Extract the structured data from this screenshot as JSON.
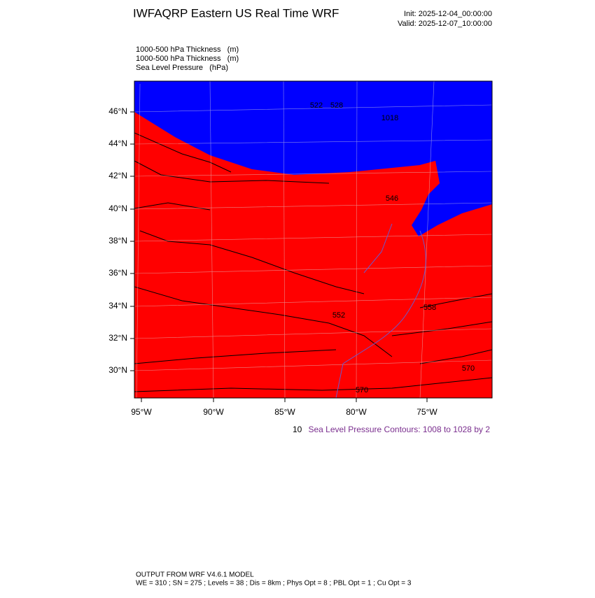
{
  "header": {
    "title": "IWFAQRP Eastern US Real Time WRF",
    "init": "Init: 2025-12-04_00:00:00",
    "valid": "Valid: 2025-12-07_10:00:00"
  },
  "legend": [
    "1000-500 hPa Thickness   (m)",
    "1000-500 hPa Thickness   (m)",
    "Sea Level Pressure   (hPa)"
  ],
  "map": {
    "lat_labels": [
      "46°N",
      "44°N",
      "42°N",
      "40°N",
      "38°N",
      "36°N",
      "34°N",
      "32°N",
      "30°N"
    ],
    "lon_labels": [
      "95°W",
      "90°W",
      "85°W",
      "80°W",
      "75°W"
    ],
    "contour_labels": [
      "522",
      "528",
      "546",
      "552",
      "558",
      "570",
      "570",
      "1018"
    ]
  },
  "contour_note": {
    "cut": "10",
    "text": "Sea Level Pressure Contours: 1008 to 1028 by 2"
  },
  "footer": [
    "OUTPUT FROM WRF V4.6.1 MODEL",
    "WE = 310 ; SN = 275 ; Levels = 38 ; Dis = 8km ; Phys Opt = 8 ; PBL Opt = 1 ; Cu Opt = 3"
  ]
}
